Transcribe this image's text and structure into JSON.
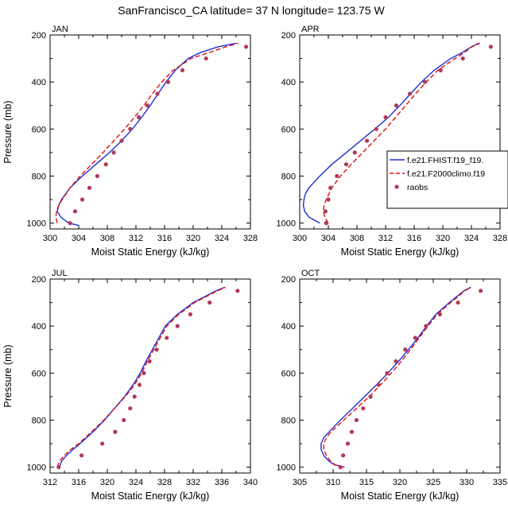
{
  "title": "SanFrancisco_CA  latitude= 37 N longitude= 123.75 W",
  "legend": {
    "items": [
      {
        "label": "f.e21.FHIST.f19_f19.",
        "color": "#1f2fd6",
        "style": "solid"
      },
      {
        "label": "f.e21.F2000climo.f19",
        "color": "#e01010",
        "style": "dashed"
      },
      {
        "label": "raobs",
        "color": "#b03a5a",
        "style": "marker"
      }
    ]
  },
  "chart_data": [
    {
      "type": "line",
      "panel": "JAN",
      "xlabel": "Moist Static Energy (kJ/kg)",
      "ylabel": "Pressure (mb)",
      "xlim": [
        300,
        328
      ],
      "ylim": [
        1025,
        200
      ],
      "xticks": [
        300,
        304,
        308,
        312,
        316,
        320,
        324,
        328
      ],
      "yticks": [
        200,
        400,
        600,
        800,
        1000
      ],
      "series": [
        {
          "name": "f.e21.FHIST.f19_f19.",
          "pressure": [
            1010,
            1000,
            975,
            950,
            925,
            900,
            850,
            800,
            750,
            700,
            650,
            600,
            550,
            500,
            450,
            400,
            350,
            300,
            275,
            250,
            235
          ],
          "values": [
            304.0,
            302.6,
            301.5,
            301.0,
            301.2,
            301.6,
            302.8,
            304.5,
            306.4,
            308.3,
            310.0,
            311.5,
            312.8,
            314.0,
            315.1,
            316.2,
            317.5,
            319.3,
            321.0,
            323.5,
            326.0
          ]
        },
        {
          "name": "f.e21.F2000climo.f19",
          "pressure": [
            1000,
            975,
            950,
            925,
            900,
            850,
            800,
            750,
            700,
            650,
            600,
            550,
            500,
            450,
            400,
            350,
            300,
            275,
            250,
            235
          ],
          "values": [
            301.0,
            300.8,
            300.9,
            301.2,
            301.7,
            302.8,
            304.2,
            305.8,
            307.4,
            308.9,
            310.4,
            311.8,
            313.1,
            314.3,
            315.6,
            317.2,
            319.7,
            322.2,
            324.6,
            326.3
          ]
        },
        {
          "name": "raobs",
          "pressure": [
            1000,
            950,
            900,
            850,
            800,
            750,
            700,
            650,
            600,
            550,
            500,
            450,
            400,
            350,
            300,
            250
          ],
          "values": [
            302.8,
            303.5,
            304.5,
            305.5,
            306.6,
            307.8,
            308.9,
            310.0,
            311.2,
            312.4,
            313.6,
            315.0,
            316.5,
            318.5,
            321.8,
            327.4
          ]
        }
      ]
    },
    {
      "type": "line",
      "panel": "APR",
      "xlabel": "Moist Static Energy (kJ/kg)",
      "ylabel": "",
      "xlim": [
        300,
        328
      ],
      "ylim": [
        1025,
        200
      ],
      "xticks": [
        300,
        304,
        308,
        312,
        316,
        320,
        324,
        328
      ],
      "yticks": [
        200,
        400,
        600,
        800,
        1000
      ],
      "series": [
        {
          "name": "f.e21.FHIST.f19_f19.",
          "pressure": [
            1000,
            975,
            950,
            925,
            900,
            875,
            850,
            800,
            750,
            700,
            650,
            600,
            550,
            500,
            450,
            400,
            350,
            300,
            275,
            250,
            235
          ],
          "values": [
            302.8,
            301.3,
            300.7,
            300.5,
            300.6,
            300.8,
            301.3,
            302.8,
            304.5,
            306.5,
            308.5,
            310.5,
            312.4,
            314.0,
            315.5,
            317.0,
            318.8,
            321.1,
            322.7,
            324.0,
            325.0
          ]
        },
        {
          "name": "f.e21.F2000climo.f19",
          "pressure": [
            1000,
            975,
            950,
            925,
            900,
            850,
            800,
            750,
            700,
            650,
            600,
            550,
            500,
            450,
            400,
            350,
            300,
            275,
            250,
            235
          ],
          "values": [
            304.0,
            303.5,
            303.3,
            303.4,
            303.7,
            304.5,
            305.7,
            307.2,
            308.8,
            310.4,
            312.0,
            313.4,
            314.8,
            316.2,
            317.7,
            319.3,
            321.7,
            323.0,
            324.1,
            325.2
          ]
        },
        {
          "name": "raobs",
          "pressure": [
            1000,
            950,
            900,
            850,
            800,
            750,
            700,
            650,
            600,
            550,
            500,
            450,
            400,
            350,
            300,
            250
          ],
          "values": [
            303.7,
            303.6,
            304.0,
            304.3,
            305.2,
            306.5,
            307.7,
            309.4,
            310.7,
            312.0,
            313.5,
            315.4,
            317.5,
            319.7,
            322.8,
            326.7
          ]
        }
      ]
    },
    {
      "type": "line",
      "panel": "JUL",
      "xlabel": "Moist Static Energy (kJ/kg)",
      "ylabel": "Pressure (mb)",
      "xlim": [
        312,
        340
      ],
      "ylim": [
        1025,
        200
      ],
      "xticks": [
        312,
        316,
        320,
        324,
        328,
        332,
        336,
        340
      ],
      "yticks": [
        200,
        400,
        600,
        800,
        1000
      ],
      "series": [
        {
          "name": "f.e21.FHIST.f19_f19.",
          "pressure": [
            1000,
            975,
            950,
            925,
            900,
            850,
            800,
            750,
            700,
            650,
            600,
            550,
            500,
            450,
            400,
            350,
            300,
            275,
            250,
            235
          ],
          "values": [
            313.3,
            313.6,
            314.3,
            315.2,
            316.2,
            318.0,
            319.6,
            321.0,
            322.4,
            323.6,
            324.6,
            325.4,
            326.3,
            327.2,
            328.1,
            329.8,
            332.0,
            333.6,
            335.2,
            336.4
          ]
        },
        {
          "name": "f.e21.F2000climo.f19",
          "pressure": [
            1000,
            975,
            950,
            925,
            900,
            850,
            800,
            750,
            700,
            650,
            600,
            550,
            500,
            450,
            400,
            350,
            300,
            275,
            250,
            235
          ],
          "values": [
            313.0,
            313.3,
            314.0,
            314.9,
            316.0,
            317.8,
            319.5,
            321.0,
            322.5,
            323.8,
            324.8,
            325.6,
            326.5,
            327.4,
            328.3,
            330.0,
            332.2,
            333.8,
            335.4,
            336.5
          ]
        },
        {
          "name": "raobs",
          "pressure": [
            1000,
            950,
            900,
            850,
            800,
            750,
            700,
            650,
            600,
            550,
            500,
            450,
            400,
            350,
            300,
            250
          ],
          "values": [
            313.2,
            316.4,
            319.3,
            321.1,
            322.3,
            323.2,
            323.8,
            324.5,
            325.1,
            325.9,
            326.9,
            328.3,
            329.8,
            331.6,
            334.3,
            338.2
          ]
        }
      ]
    },
    {
      "type": "line",
      "panel": "OCT",
      "xlabel": "Moist Static Energy (kJ/kg)",
      "ylabel": "",
      "xlim": [
        305,
        335
      ],
      "ylim": [
        1025,
        200
      ],
      "xticks": [
        305,
        310,
        315,
        320,
        325,
        330,
        335
      ],
      "yticks": [
        200,
        400,
        600,
        800,
        1000
      ],
      "series": [
        {
          "name": "f.e21.FHIST.f19_f19.",
          "pressure": [
            1000,
            990,
            975,
            950,
            925,
            900,
            875,
            850,
            800,
            750,
            700,
            650,
            600,
            550,
            500,
            450,
            400,
            350,
            300,
            275,
            250,
            235
          ],
          "values": [
            311.7,
            310.2,
            309.4,
            308.6,
            308.2,
            308.2,
            308.6,
            309.4,
            311.1,
            312.9,
            314.7,
            316.5,
            318.2,
            319.8,
            321.3,
            322.7,
            324.0,
            325.4,
            327.4,
            328.5,
            329.6,
            330.6
          ]
        },
        {
          "name": "f.e21.F2000climo.f19",
          "pressure": [
            1000,
            990,
            975,
            950,
            925,
            900,
            875,
            850,
            800,
            750,
            700,
            650,
            600,
            550,
            500,
            450,
            400,
            350,
            300,
            275,
            250,
            235
          ],
          "values": [
            311.6,
            310.3,
            309.6,
            309.0,
            308.6,
            308.6,
            309.0,
            309.7,
            311.6,
            313.5,
            315.4,
            317.1,
            318.7,
            320.2,
            321.6,
            322.9,
            324.2,
            325.6,
            327.6,
            328.7,
            329.7,
            330.7
          ]
        },
        {
          "name": "raobs",
          "pressure": [
            1000,
            950,
            900,
            850,
            800,
            750,
            700,
            650,
            600,
            550,
            500,
            450,
            400,
            350,
            300,
            250
          ],
          "values": [
            311.1,
            311.5,
            312.2,
            312.8,
            313.5,
            314.5,
            315.6,
            316.8,
            318.1,
            319.4,
            320.8,
            322.3,
            323.9,
            326.0,
            328.7,
            332.1
          ]
        }
      ]
    }
  ]
}
